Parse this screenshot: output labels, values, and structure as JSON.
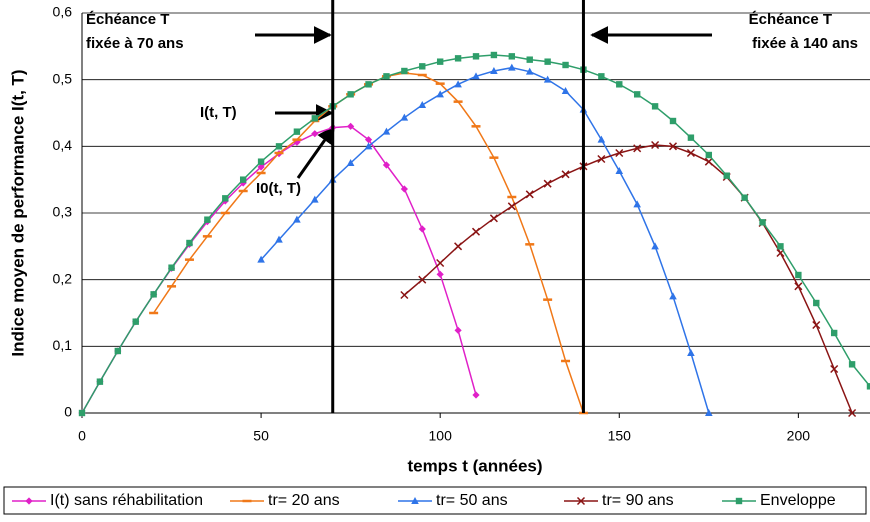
{
  "chart_data": {
    "type": "line",
    "x_label": "temps t (années)",
    "y_label": "Indice moyen de performance I(t, T)",
    "xlim": [
      0,
      220
    ],
    "xticks": [
      0,
      50,
      100,
      150,
      200
    ],
    "ylim": [
      0,
      0.6
    ],
    "yticks": [
      {
        "value": 0,
        "label": "0"
      },
      {
        "value": 0.1,
        "label": "0,1"
      },
      {
        "value": 0.2,
        "label": "0,2"
      },
      {
        "value": 0.3,
        "label": "0,3"
      },
      {
        "value": 0.4,
        "label": "0,4"
      },
      {
        "value": 0.5,
        "label": "0,5"
      },
      {
        "value": 0.6,
        "label": "0,6"
      }
    ],
    "grid": true,
    "legend": "bottom",
    "vlines": [
      70,
      140
    ],
    "annotations": [
      {
        "lines": [
          "Échéance T",
          "fixée à 70 ans"
        ]
      },
      {
        "lines": [
          "Échéance T",
          "fixée à 140 ans"
        ]
      },
      {
        "lines": [
          "I(t, T)"
        ]
      },
      {
        "lines": [
          "I0(t, T)"
        ]
      }
    ],
    "series": [
      {
        "name": "I(t) sans réhabilitation",
        "color": "#e020c8",
        "marker": "diamond",
        "x": [
          0,
          5,
          10,
          15,
          20,
          25,
          30,
          35,
          40,
          45,
          50,
          55,
          60,
          65,
          70,
          75,
          80,
          85,
          90,
          95,
          100,
          105,
          110
        ],
        "values": [
          0,
          0.047,
          0.093,
          0.137,
          0.178,
          0.217,
          0.253,
          0.287,
          0.318,
          0.345,
          0.369,
          0.389,
          0.406,
          0.419,
          0.428,
          0.43,
          0.41,
          0.372,
          0.336,
          0.276,
          0.208,
          0.124,
          0.027
        ]
      },
      {
        "name": "tr= 20 ans",
        "color": "#f07818",
        "marker": "dash",
        "x": [
          20,
          25,
          30,
          35,
          40,
          45,
          50,
          55,
          60,
          65,
          70,
          75,
          80,
          85,
          90,
          95,
          100,
          105,
          110,
          115,
          120,
          125,
          130,
          135,
          140
        ],
        "values": [
          0.15,
          0.19,
          0.23,
          0.265,
          0.3,
          0.333,
          0.36,
          0.39,
          0.41,
          0.438,
          0.46,
          0.478,
          0.493,
          0.505,
          0.51,
          0.507,
          0.494,
          0.467,
          0.43,
          0.383,
          0.324,
          0.253,
          0.17,
          0.078,
          0
        ]
      },
      {
        "name": "tr= 50 ans",
        "color": "#2f74e8",
        "marker": "triangle",
        "x": [
          50,
          55,
          60,
          65,
          70,
          75,
          80,
          85,
          90,
          95,
          100,
          105,
          110,
          115,
          120,
          125,
          130,
          135,
          140,
          145,
          150,
          155,
          160,
          165,
          170,
          175
        ],
        "values": [
          0.23,
          0.26,
          0.29,
          0.32,
          0.35,
          0.375,
          0.4,
          0.422,
          0.443,
          0.462,
          0.478,
          0.493,
          0.505,
          0.513,
          0.518,
          0.512,
          0.5,
          0.483,
          0.455,
          0.41,
          0.363,
          0.313,
          0.25,
          0.175,
          0.09,
          0
        ]
      },
      {
        "name": "tr= 90 ans",
        "color": "#8a1414",
        "marker": "cross",
        "x": [
          90,
          95,
          100,
          105,
          110,
          115,
          120,
          125,
          130,
          135,
          140,
          145,
          150,
          155,
          160,
          165,
          170,
          175,
          180,
          185,
          190,
          195,
          200,
          205,
          210,
          215
        ],
        "values": [
          0.177,
          0.2,
          0.225,
          0.25,
          0.272,
          0.292,
          0.31,
          0.328,
          0.344,
          0.358,
          0.37,
          0.381,
          0.39,
          0.397,
          0.402,
          0.4,
          0.39,
          0.377,
          0.354,
          0.323,
          0.285,
          0.24,
          0.19,
          0.132,
          0.066,
          0
        ]
      },
      {
        "name": "Enveloppe",
        "color": "#2e9e6a",
        "marker": "square",
        "x": [
          0,
          5,
          10,
          15,
          20,
          25,
          30,
          35,
          40,
          45,
          50,
          55,
          60,
          65,
          70,
          75,
          80,
          85,
          90,
          95,
          100,
          105,
          110,
          115,
          120,
          125,
          130,
          135,
          140,
          145,
          150,
          155,
          160,
          165,
          170,
          175,
          180,
          185,
          190,
          195,
          200,
          205,
          210,
          215,
          220
        ],
        "values": [
          0,
          0.047,
          0.093,
          0.137,
          0.178,
          0.218,
          0.255,
          0.29,
          0.322,
          0.35,
          0.377,
          0.4,
          0.422,
          0.442,
          0.46,
          0.478,
          0.493,
          0.505,
          0.513,
          0.52,
          0.527,
          0.532,
          0.535,
          0.537,
          0.535,
          0.53,
          0.527,
          0.522,
          0.515,
          0.505,
          0.493,
          0.478,
          0.46,
          0.438,
          0.413,
          0.387,
          0.356,
          0.323,
          0.286,
          0.25,
          0.207,
          0.165,
          0.12,
          0.073,
          0.04
        ]
      }
    ]
  }
}
